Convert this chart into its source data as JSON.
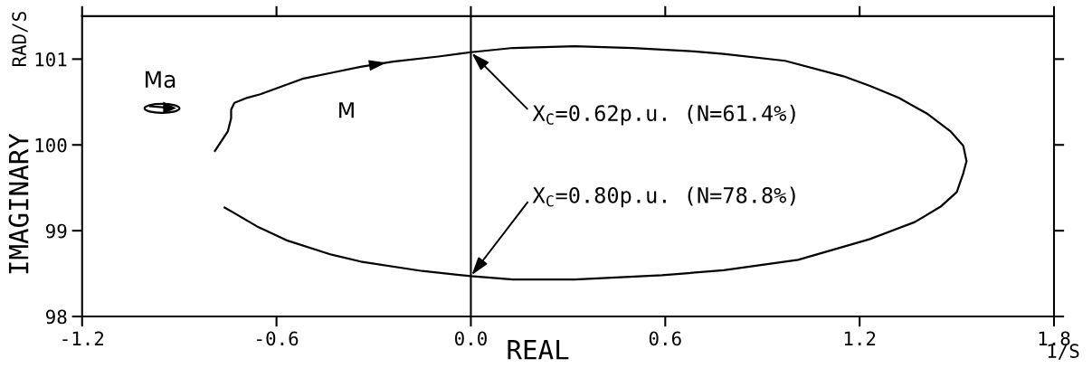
{
  "chart_data": {
    "type": "line",
    "xlabel": "REAL",
    "ylabel": "IMAGINARY",
    "annotations": [
      "RAD/S",
      "1/S",
      "Ma",
      {
        "text": "X$_{C}$=0.62p.u. (N=61.4%)",
        "x": 0,
        "y": 101.08
      },
      {
        "text": "X$_{C}$=0.80p.u. (N=78.8%)",
        "x": 0,
        "y": 98.47
      }
    ],
    "series": [
      {
        "name": "M",
        "color": "#000000",
        "x": [
          -0.79,
          -0.75,
          -0.74,
          -0.74,
          -0.73,
          -0.69,
          -0.65,
          -0.52,
          -0.43,
          -0.34,
          -0.24,
          -0.1,
          0.0,
          0.13,
          0.32,
          0.5,
          0.69,
          0.78,
          0.97,
          1.15,
          1.23,
          1.32,
          1.41,
          1.48,
          1.52,
          1.53,
          1.52,
          1.5,
          1.45,
          1.37,
          1.23,
          1.01,
          0.78,
          0.59,
          0.32,
          0.13,
          0.0,
          -0.15,
          -0.34,
          -0.43,
          -0.57,
          -0.66,
          -0.76
        ],
        "values": [
          99.93,
          100.16,
          100.31,
          100.41,
          100.49,
          100.55,
          100.59,
          100.77,
          100.84,
          100.91,
          100.97,
          101.03,
          101.08,
          101.13,
          101.15,
          101.13,
          101.09,
          101.06,
          100.98,
          100.8,
          100.69,
          100.55,
          100.36,
          100.16,
          99.99,
          99.81,
          99.67,
          99.45,
          99.28,
          99.1,
          98.9,
          98.66,
          98.54,
          98.48,
          98.43,
          98.43,
          98.47,
          98.53,
          98.64,
          98.72,
          98.89,
          99.05,
          99.27
        ]
      }
    ],
    "xlim": [
      -1.2,
      1.8
    ],
    "ylim": [
      98,
      101.5
    ],
    "xticks": [
      -1.2,
      -0.6,
      {
        "value": 0,
        "label": "0.0"
      },
      0.6,
      1.2,
      1.8
    ],
    "yticks": [
      98,
      99,
      100,
      101
    ],
    "ref_lines": [
      {
        "axis": "x",
        "value": 0,
        "color": "#000000"
      }
    ],
    "marker": "none",
    "line_style": "solid"
  }
}
